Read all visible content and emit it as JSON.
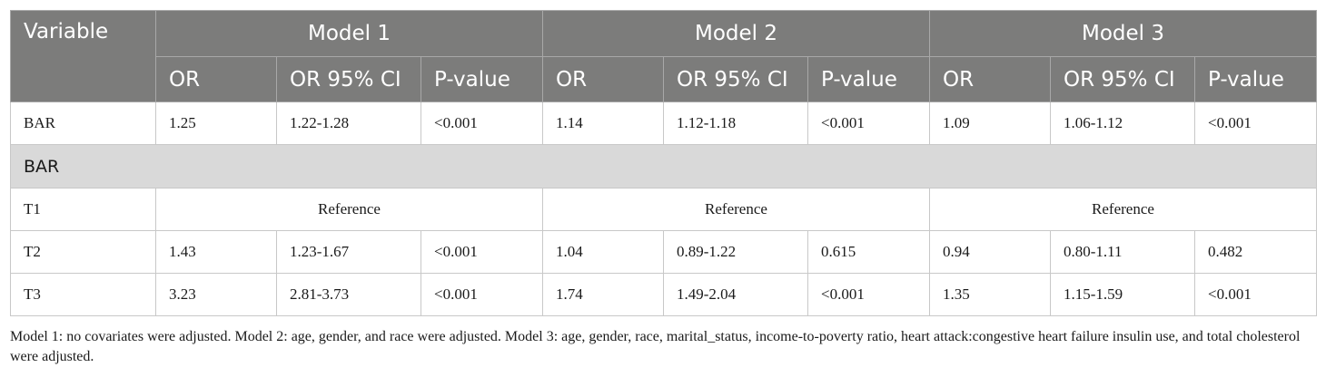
{
  "header": {
    "variable": "Variable",
    "models": [
      "Model 1",
      "Model 2",
      "Model 3"
    ],
    "subcols": [
      "OR",
      "OR 95% CI",
      "P-value"
    ]
  },
  "rows": {
    "bar": {
      "label": "BAR",
      "m1": [
        "1.25",
        "1.22-1.28",
        "<0.001"
      ],
      "m2": [
        "1.14",
        "1.12-1.18",
        "<0.001"
      ],
      "m3": [
        "1.09",
        "1.06-1.12",
        "<0.001"
      ]
    },
    "section_label": "BAR",
    "t1": {
      "label": "T1",
      "m1": "Reference",
      "m2": "Reference",
      "m3": "Reference"
    },
    "t2": {
      "label": "T2",
      "m1": [
        "1.43",
        "1.23-1.67",
        "<0.001"
      ],
      "m2": [
        "1.04",
        "0.89-1.22",
        "0.615"
      ],
      "m3": [
        "0.94",
        "0.80-1.11",
        "0.482"
      ]
    },
    "t3": {
      "label": "T3",
      "m1": [
        "3.23",
        "2.81-3.73",
        "<0.001"
      ],
      "m2": [
        "1.74",
        "1.49-2.04",
        "<0.001"
      ],
      "m3": [
        "1.35",
        "1.15-1.59",
        "<0.001"
      ]
    }
  },
  "footnote": "Model 1: no covariates were adjusted. Model 2: age, gender, and race were adjusted. Model 3: age, gender, race, marital_status, income-to-poverty ratio, heart attack:congestive heart failure insulin use, and total cholesterol were adjusted."
}
